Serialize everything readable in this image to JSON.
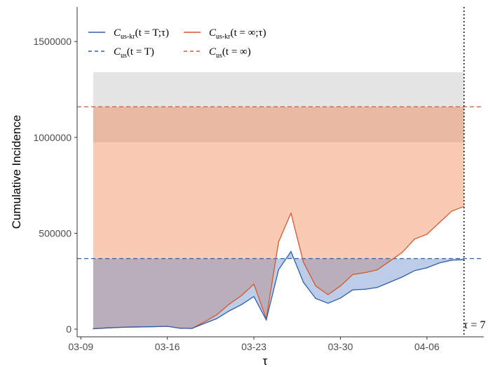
{
  "chart_data": {
    "type": "line",
    "title": "",
    "xlabel": "τ",
    "ylabel": "Cumulative Incidence",
    "ylim": [
      -40000,
      1680000
    ],
    "xlim_days": [
      -1.3,
      31.6
    ],
    "x_start_date": "2020-03-10",
    "y_ticks": [
      0,
      500000,
      1000000,
      1500000
    ],
    "y_tick_labels": [
      "0",
      "500000",
      "1000000",
      "1500000"
    ],
    "x_tick_days": [
      -1,
      6,
      13,
      20,
      27
    ],
    "x_tick_labels": [
      "03-09",
      "03-16",
      "03-23",
      "03-30",
      "04-06"
    ],
    "grid": false,
    "legend_position": "top-left",
    "x_dates": [
      "03-10",
      "03-11",
      "03-12",
      "03-13",
      "03-14",
      "03-15",
      "03-16",
      "03-17",
      "03-18",
      "03-19",
      "03-20",
      "03-21",
      "03-22",
      "03-23",
      "03-24",
      "03-25",
      "03-26",
      "03-27",
      "03-28",
      "03-29",
      "03-30",
      "03-31",
      "04-01",
      "04-02",
      "04-03",
      "04-04",
      "04-05",
      "04-06",
      "04-07",
      "04-08",
      "04-09"
    ],
    "series": [
      {
        "name": "C_us-kr(t = T;τ)",
        "color": "#2f5fab",
        "style": "solid",
        "values": [
          2000,
          6000,
          9000,
          11000,
          12000,
          13000,
          15000,
          5000,
          4000,
          30000,
          55000,
          95000,
          128000,
          170000,
          48000,
          310000,
          405000,
          245000,
          160000,
          135000,
          162000,
          205000,
          208000,
          218000,
          245000,
          272000,
          305000,
          320000,
          345000,
          360000,
          362000
        ]
      },
      {
        "name": "C_us-kr(t = ∞;τ)",
        "color": "#d9572b",
        "style": "solid",
        "values": [
          2000,
          6000,
          9000,
          11000,
          12000,
          13000,
          15000,
          5000,
          4000,
          38000,
          75000,
          130000,
          175000,
          235000,
          55000,
          455000,
          605000,
          350000,
          225000,
          180000,
          225000,
          285000,
          295000,
          310000,
          355000,
          400000,
          470000,
          495000,
          555000,
          615000,
          640000
        ]
      },
      {
        "name": "C_us(t = T)",
        "color": "#2f5fab",
        "style": "dashed",
        "value": 368000
      },
      {
        "name": "C_us(t = ∞)",
        "color": "#d9572b",
        "style": "dashed",
        "value": 1160000
      }
    ],
    "bands": [
      {
        "color": "#999999",
        "opacity": 0.25,
        "y_range": [
          975000,
          1340000
        ]
      },
      {
        "color": "#ee6a2c",
        "opacity": 0.35,
        "y_range": [
          368000,
          1160000
        ]
      }
    ],
    "vline": {
      "day": 30.0,
      "label": "τ = 7",
      "style": "dotted"
    }
  }
}
